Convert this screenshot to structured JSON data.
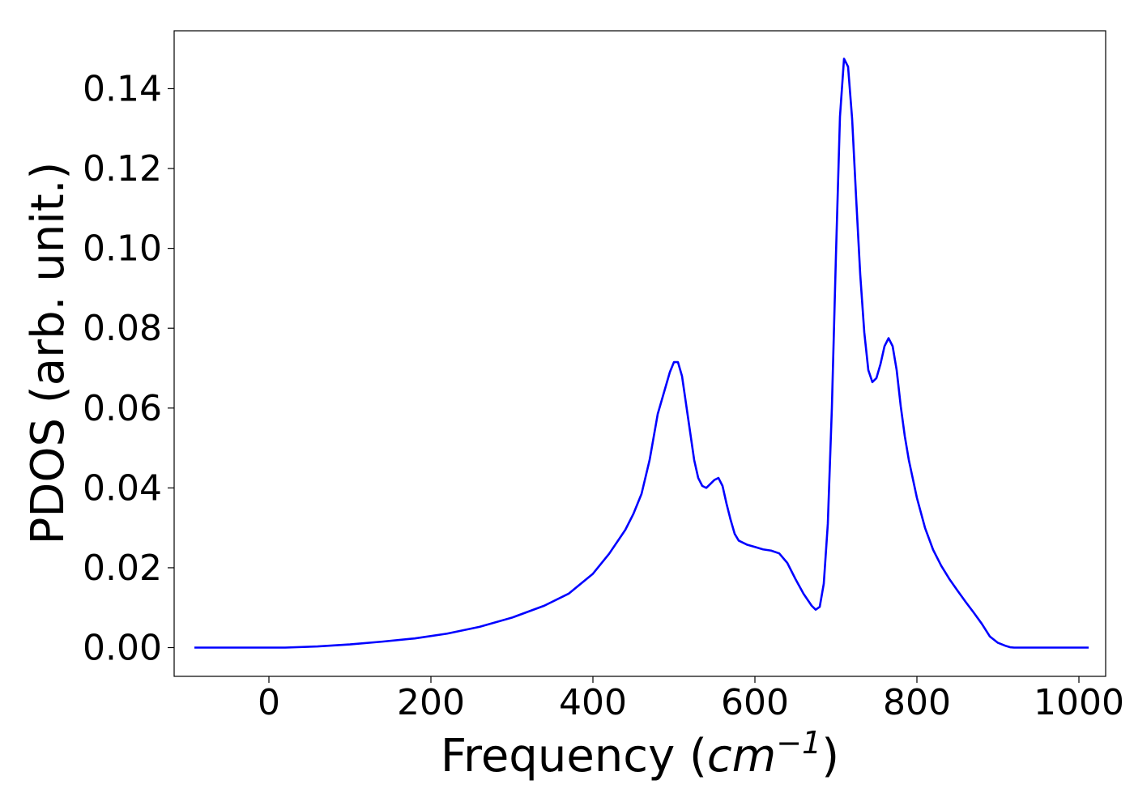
{
  "chart_data": {
    "type": "line",
    "title": "",
    "xlabel": "Frequency",
    "xlabel_unit_base": "cm",
    "xlabel_unit_exp": "−1",
    "ylabel": "PDOS (arb. unit.)",
    "xlim": [
      -117,
      1033
    ],
    "ylim": [
      -0.0072,
      0.1545
    ],
    "xticks": [
      0,
      200,
      400,
      600,
      800,
      1000
    ],
    "xtick_labels": [
      "0",
      "200",
      "400",
      "600",
      "800",
      "1000"
    ],
    "yticks": [
      0.0,
      0.02,
      0.04,
      0.06,
      0.08,
      0.1,
      0.12,
      0.14
    ],
    "ytick_labels": [
      "0.00",
      "0.02",
      "0.04",
      "0.06",
      "0.08",
      "0.10",
      "0.12",
      "0.14"
    ],
    "grid": false,
    "line_color": "#0000ff",
    "series": [
      {
        "x": [
          -92,
          0,
          20,
          60,
          100,
          140,
          180,
          220,
          260,
          300,
          340,
          370,
          400,
          420,
          440,
          450,
          460,
          470,
          480,
          490,
          495,
          500,
          505,
          510,
          515,
          520,
          525,
          530,
          535,
          540,
          545,
          550,
          555,
          560,
          565,
          570,
          575,
          580,
          590,
          600,
          610,
          620,
          630,
          640,
          650,
          660,
          670,
          675,
          680,
          685,
          690,
          695,
          700,
          705,
          710,
          715,
          720,
          725,
          730,
          735,
          740,
          745,
          750,
          755,
          760,
          765,
          770,
          775,
          780,
          785,
          790,
          800,
          810,
          820,
          830,
          840,
          850,
          860,
          870,
          880,
          890,
          900,
          910,
          915,
          920,
          925,
          930,
          935,
          945,
          1012
        ],
        "y": [
          0.0,
          0.0,
          0.0,
          0.0003,
          0.0008,
          0.0015,
          0.0023,
          0.0035,
          0.0052,
          0.0075,
          0.0105,
          0.0135,
          0.0185,
          0.0235,
          0.0295,
          0.0335,
          0.0385,
          0.047,
          0.0585,
          0.0655,
          0.069,
          0.0715,
          0.0715,
          0.068,
          0.061,
          0.054,
          0.047,
          0.0425,
          0.0405,
          0.04,
          0.041,
          0.042,
          0.0425,
          0.0405,
          0.036,
          0.032,
          0.0285,
          0.0268,
          0.0258,
          0.0252,
          0.0246,
          0.0243,
          0.0236,
          0.0212,
          0.0172,
          0.0135,
          0.0105,
          0.0095,
          0.0102,
          0.016,
          0.031,
          0.06,
          0.098,
          0.133,
          0.1475,
          0.1455,
          0.1325,
          0.1125,
          0.0935,
          0.079,
          0.0695,
          0.0665,
          0.0675,
          0.071,
          0.0755,
          0.0775,
          0.0755,
          0.0695,
          0.0605,
          0.053,
          0.047,
          0.0375,
          0.03,
          0.0245,
          0.0205,
          0.0172,
          0.0143,
          0.0115,
          0.0088,
          0.006,
          0.0028,
          0.0012,
          0.0004,
          0.0001,
          0.0,
          0.0,
          0.0,
          0.0,
          0.0,
          0.0
        ]
      }
    ]
  }
}
